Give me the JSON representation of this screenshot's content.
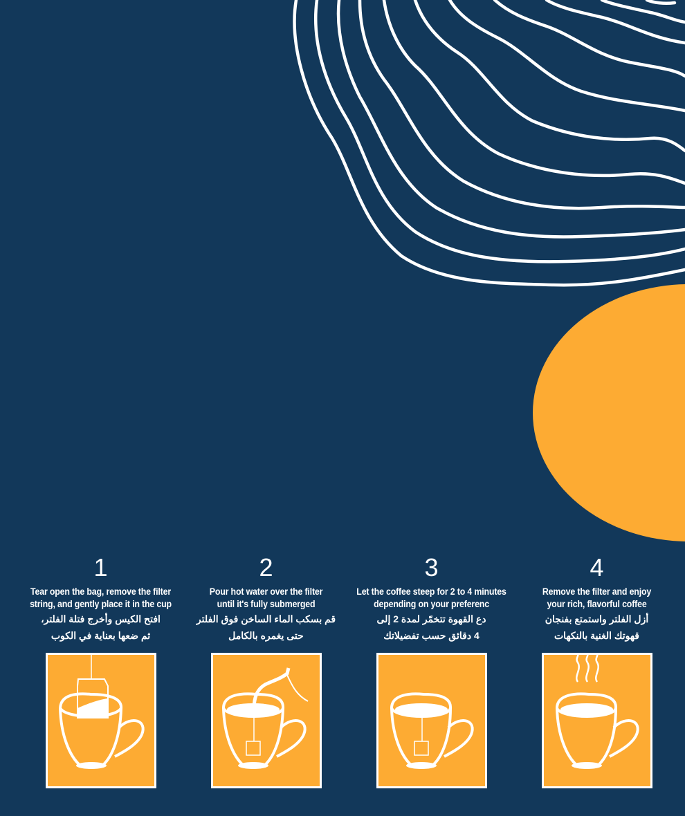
{
  "colors": {
    "background": "#12385a",
    "accent": "#fdab33",
    "line": "#ffffff"
  },
  "steps": [
    {
      "number": "1",
      "en1": "Tear open the bag, remove the filter",
      "en2": "string, and gently place it in the cup",
      "ar1": "افتح الكيس وأخرج فتلة الفلتر،",
      "ar2": "ثم ضعها بعناية في الكوب",
      "icon": "cup-with-filter-bag-icon"
    },
    {
      "number": "2",
      "en1": "Pour hot water over the filter",
      "en2": "until it's fully submerged",
      "ar1": "قم بسكب الماء الساخن فوق الفلتر",
      "ar2": "حتى يغمره بالكامل",
      "icon": "pouring-water-cup-icon"
    },
    {
      "number": "3",
      "en1": "Let the coffee steep for 2 to 4 minutes",
      "en2": "depending on your preferenc",
      "ar1": "دع القهوة تتخمّر لمدة 2 إلى",
      "ar2": "4 دقائق حسب تفضيلاتك",
      "icon": "steeping-cup-icon"
    },
    {
      "number": "4",
      "en1": "Remove the filter and enjoy",
      "en2": "your rich, flavorful  coffee",
      "ar1": "أزل الفلتر واستمتع بفنجان",
      "ar2": "قهوتك الغنية بالنكهات",
      "icon": "steaming-cup-icon"
    }
  ]
}
